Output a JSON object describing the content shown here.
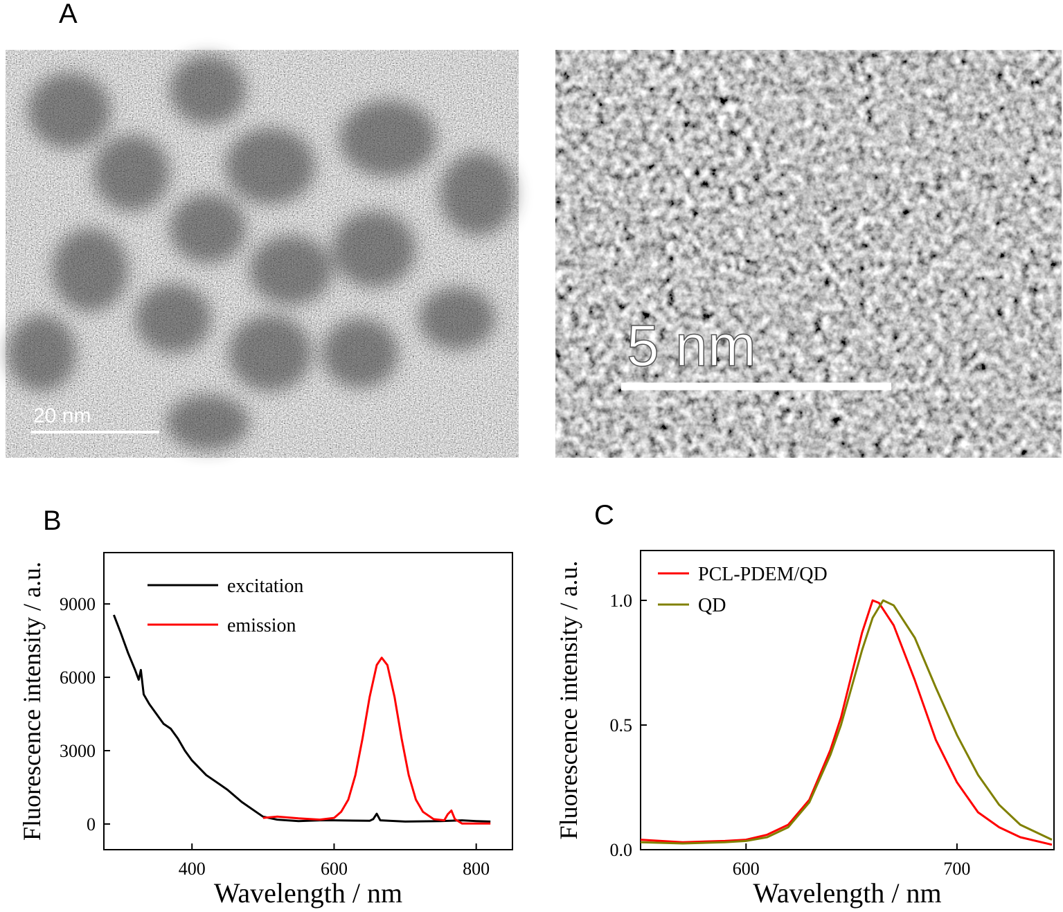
{
  "panel_labels": [
    "A",
    "B",
    "C"
  ],
  "scale_bars": [
    "20 nm",
    "5 nm"
  ],
  "chart_data": [
    {
      "type": "line",
      "xlabel": "Wavelength / nm",
      "ylabel": "Fluorescence intensity / a.u.",
      "xlim": [
        276,
        851
      ],
      "xticks": [
        400,
        600,
        800
      ],
      "ylim": [
        -1050,
        11100
      ],
      "yticks": [
        0,
        3000,
        6000,
        9000
      ],
      "legend": "upper left",
      "series": [
        {
          "name": "excitation",
          "color": "#000000",
          "x": [
            290,
            300,
            310,
            320,
            325,
            328,
            332,
            340,
            350,
            360,
            370,
            380,
            390,
            400,
            420,
            440,
            450,
            470,
            490,
            500,
            520,
            550,
            580,
            600,
            650,
            655,
            660,
            665,
            700,
            750,
            780,
            800,
            820
          ],
          "values": [
            8550,
            7800,
            7000,
            6300,
            5900,
            6300,
            5300,
            4900,
            4500,
            4100,
            3900,
            3500,
            3000,
            2600,
            2000,
            1600,
            1400,
            900,
            500,
            300,
            180,
            120,
            150,
            150,
            130,
            200,
            420,
            150,
            100,
            120,
            150,
            120,
            100
          ]
        },
        {
          "name": "emission",
          "color": "#ff0000",
          "x": [
            500,
            520,
            550,
            580,
            600,
            610,
            620,
            630,
            640,
            650,
            660,
            667,
            675,
            685,
            695,
            705,
            715,
            725,
            740,
            755,
            760,
            765,
            770,
            780,
            820
          ],
          "values": [
            250,
            300,
            230,
            180,
            250,
            500,
            1000,
            2000,
            3500,
            5200,
            6500,
            6800,
            6500,
            5200,
            3500,
            2000,
            1000,
            500,
            200,
            150,
            400,
            550,
            200,
            20,
            20
          ]
        }
      ]
    },
    {
      "type": "line",
      "xlabel": "Wavelength / nm",
      "ylabel": "Fluorescence intensity / a.u.",
      "xlim": [
        550,
        746
      ],
      "xticks": [
        600,
        700
      ],
      "ylim": [
        0,
        1.2
      ],
      "yticks": [
        {
          "value": 0,
          "label": "0.0"
        },
        {
          "value": 0.5,
          "label": "0.5"
        },
        {
          "value": 1,
          "label": "1.0"
        }
      ],
      "legend": "upper left",
      "series": [
        {
          "name": "PCL-PDEM/QD",
          "color": "#ff0000",
          "x": [
            550,
            570,
            590,
            600,
            610,
            620,
            630,
            640,
            645,
            650,
            655,
            660,
            663,
            670,
            680,
            690,
            700,
            710,
            720,
            730,
            745
          ],
          "values": [
            0.04,
            0.03,
            0.035,
            0.04,
            0.06,
            0.1,
            0.2,
            0.4,
            0.53,
            0.7,
            0.87,
            1.0,
            0.99,
            0.9,
            0.68,
            0.44,
            0.27,
            0.15,
            0.09,
            0.05,
            0.02
          ]
        },
        {
          "name": "QD",
          "color": "#808000",
          "x": [
            550,
            570,
            590,
            600,
            610,
            620,
            630,
            640,
            645,
            650,
            655,
            660,
            665,
            670,
            680,
            690,
            700,
            710,
            720,
            730,
            745
          ],
          "values": [
            0.03,
            0.025,
            0.03,
            0.035,
            0.05,
            0.09,
            0.19,
            0.38,
            0.5,
            0.65,
            0.8,
            0.93,
            1.0,
            0.98,
            0.85,
            0.65,
            0.46,
            0.3,
            0.18,
            0.1,
            0.04
          ]
        }
      ]
    }
  ]
}
